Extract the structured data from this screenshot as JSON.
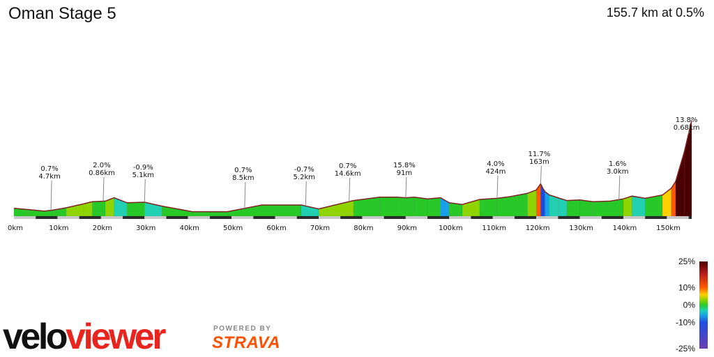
{
  "header": {
    "title": "Oman Stage 5",
    "summary": "155.7 km at 0.5%"
  },
  "colors": {
    "line": "#7b2323",
    "base_light": "#c8c8c8",
    "base_dark": "#2a2a2a",
    "annotation_line": "#888888"
  },
  "chart_data": {
    "type": "area",
    "xlabel": "",
    "ylabel": "",
    "xlim": [
      0,
      155.7
    ],
    "x_ticks": [
      "0km",
      "10km",
      "20km",
      "30km",
      "40km",
      "50km",
      "60km",
      "70km",
      "80km",
      "90km",
      "100km",
      "110km",
      "120km",
      "130km",
      "140km",
      "150km"
    ],
    "x_tick_values": [
      0,
      10,
      20,
      30,
      40,
      50,
      60,
      70,
      80,
      90,
      100,
      110,
      120,
      130,
      140,
      150
    ],
    "elevation_profile": {
      "x_km": [
        0,
        3,
        7,
        9,
        12,
        16,
        18,
        21,
        23,
        26,
        30,
        34,
        41,
        49,
        57,
        66,
        70,
        78,
        84,
        88,
        90,
        92,
        95,
        98,
        100,
        103,
        107,
        111,
        114,
        118,
        120,
        121,
        121.5,
        122,
        123,
        125,
        127,
        130,
        133,
        137,
        140,
        142,
        145,
        149,
        151,
        152,
        154,
        155.7
      ],
      "relative_height": [
        0.14,
        0.12,
        0.09,
        0.11,
        0.15,
        0.22,
        0.26,
        0.27,
        0.33,
        0.24,
        0.25,
        0.18,
        0.08,
        0.08,
        0.2,
        0.2,
        0.13,
        0.28,
        0.34,
        0.34,
        0.33,
        0.34,
        0.31,
        0.33,
        0.24,
        0.21,
        0.3,
        0.32,
        0.35,
        0.41,
        0.47,
        0.58,
        0.5,
        0.44,
        0.38,
        0.33,
        0.28,
        0.29,
        0.26,
        0.27,
        0.31,
        0.36,
        0.32,
        0.38,
        0.5,
        0.62,
        1.15,
        1.72
      ]
    },
    "segments_gradient_pct": [
      -0.7,
      -0.9,
      0.7,
      1.3,
      1.8,
      2.0,
      0.5,
      2.6,
      -3.3,
      0.2,
      -1.6,
      -1.4,
      0.0,
      1.5,
      0.0,
      -1.8,
      1.8,
      1.0,
      0.0,
      -0.5,
      0.5,
      -0.3,
      0.7,
      -4.5,
      -1.0,
      2.2,
      0.5,
      0.9,
      1.5,
      3.0,
      11.0,
      -8.0,
      -12.0,
      -6.0,
      -2.5,
      -2.5,
      0.3,
      -1.0,
      0.3,
      1.0,
      2.5,
      -2.0,
      1.5,
      6.0,
      12.0,
      26.0,
      34.0
    ],
    "annotations": [
      {
        "grade": "0.7%",
        "distance": "4.7km",
        "x_km": 8.5
      },
      {
        "grade": "2.0%",
        "distance": "0.86km",
        "x_km": 20.5
      },
      {
        "grade": "-0.9%",
        "distance": "5.1km",
        "x_km": 30.0
      },
      {
        "grade": "0.7%",
        "distance": "8.5km",
        "x_km": 53.0
      },
      {
        "grade": "-0.7%",
        "distance": "5.2km",
        "x_km": 67.0
      },
      {
        "grade": "0.7%",
        "distance": "14.6km",
        "x_km": 77.0
      },
      {
        "grade": "15.8%",
        "distance": "91m",
        "x_km": 90.0
      },
      {
        "grade": "4.0%",
        "distance": "424m",
        "x_km": 111.0
      },
      {
        "grade": "11.7%",
        "distance": "163m",
        "x_km": 121.0
      },
      {
        "grade": "1.6%",
        "distance": "3.0km",
        "x_km": 139.0
      },
      {
        "grade": "13.8%",
        "distance": "0.68km",
        "x_km": 155.0
      }
    ],
    "gradient_scale": {
      "labels": [
        "25%",
        "10%",
        "0%",
        "-10%",
        "-25%"
      ],
      "stops": [
        {
          "pct": 25,
          "color": "#4a0000"
        },
        {
          "pct": 18,
          "color": "#b71c1c"
        },
        {
          "pct": 10,
          "color": "#ff5a00"
        },
        {
          "pct": 6,
          "color": "#ffd000"
        },
        {
          "pct": 3,
          "color": "#8fd400"
        },
        {
          "pct": 0,
          "color": "#28c828"
        },
        {
          "pct": -3,
          "color": "#20d0b0"
        },
        {
          "pct": -6,
          "color": "#1aa0e8"
        },
        {
          "pct": -10,
          "color": "#1e4ee0"
        },
        {
          "pct": -25,
          "color": "#6a3fb0"
        }
      ]
    }
  },
  "footer": {
    "logo_prefix": "velo",
    "logo_suffix": "viewer",
    "logo_prefix_color": "#111111",
    "logo_suffix_color": "#e8241f",
    "powered_by": "POWERED BY",
    "strava": "STRAVA"
  }
}
